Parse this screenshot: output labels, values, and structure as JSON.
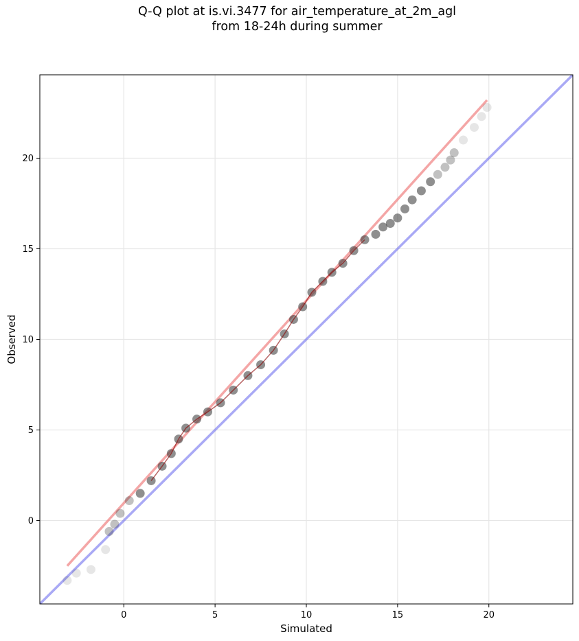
{
  "figure": {
    "title_line1": "Q-Q plot at is.vi.3477 for air_temperature_at_2m_agl",
    "title_line2": "from 18-24h during summer"
  },
  "chart_data": {
    "type": "scatter",
    "title": "Q-Q plot at is.vi.3477 for air_temperature_at_2m_agl\nfrom 18-24h during summer",
    "xlabel": "Simulated",
    "ylabel": "Observed",
    "xlim": [
      -4.6,
      24.6
    ],
    "ylim": [
      -4.6,
      24.6
    ],
    "xticks": [
      0,
      5,
      10,
      15,
      20
    ],
    "yticks": [
      0,
      5,
      10,
      15,
      20
    ],
    "grid": true,
    "colors": {
      "points": "#333333",
      "fit_line": "#f08080",
      "identity_line": "#6f6fef",
      "trend_segment": "#8b0000"
    },
    "series": [
      {
        "kind": "points",
        "x": [
          -3.1,
          -2.6,
          -1.8,
          -1.0,
          -0.8,
          -0.5,
          -0.2,
          0.3,
          0.9,
          1.5,
          2.1,
          2.6,
          3.0,
          3.4,
          4.0,
          4.6,
          5.3,
          6.0,
          6.8,
          7.5,
          8.2,
          8.8,
          9.3,
          9.8,
          10.3,
          10.9,
          11.4,
          12.0,
          12.6,
          13.2,
          13.8,
          14.2,
          14.6,
          15.0,
          15.4,
          15.8,
          16.3,
          16.8,
          17.2,
          17.6,
          17.9,
          18.1,
          18.6,
          19.2,
          19.6,
          19.9
        ],
        "y": [
          -3.3,
          -2.9,
          -2.7,
          -1.6,
          -0.6,
          -0.2,
          0.4,
          1.1,
          1.5,
          2.2,
          3.0,
          3.7,
          4.5,
          5.1,
          5.6,
          6.0,
          6.5,
          7.2,
          8.0,
          8.6,
          9.4,
          10.3,
          11.1,
          11.8,
          12.6,
          13.2,
          13.7,
          14.2,
          14.9,
          15.5,
          15.8,
          16.2,
          16.4,
          16.7,
          17.2,
          17.7,
          18.2,
          18.7,
          19.1,
          19.5,
          19.9,
          20.3,
          21.0,
          21.7,
          22.3,
          22.8
        ]
      },
      {
        "kind": "fit_line",
        "x": [
          -3.1,
          19.9
        ],
        "y": [
          -2.5,
          23.2
        ]
      },
      {
        "kind": "identity_line",
        "x": [
          -4.6,
          24.6
        ],
        "y": [
          -4.6,
          24.6
        ]
      }
    ]
  }
}
